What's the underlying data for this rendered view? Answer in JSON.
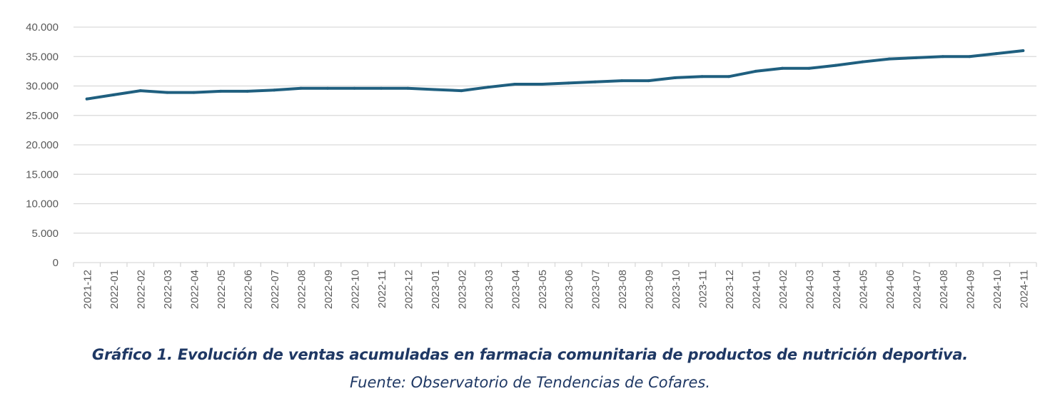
{
  "chart_data": {
    "type": "line",
    "title": "",
    "xlabel": "",
    "ylabel": "",
    "ylim": [
      0,
      40000
    ],
    "y_ticks": [
      "0",
      "5.000",
      "10.000",
      "15.000",
      "20.000",
      "25.000",
      "30.000",
      "35.000",
      "40.000"
    ],
    "y_tick_values": [
      0,
      5000,
      10000,
      15000,
      20000,
      25000,
      30000,
      35000,
      40000
    ],
    "grid": "horizontal",
    "line_color": "#1f5f7f",
    "grid_color": "#d9d9d9",
    "categories": [
      "2021-12",
      "2022-01",
      "2022-02",
      "2022-03",
      "2022-04",
      "2022-05",
      "2022-06",
      "2022-07",
      "2022-08",
      "2022-09",
      "2022-10",
      "2022-11",
      "2022-12",
      "2023-01",
      "2023-02",
      "2023-03",
      "2023-04",
      "2023-05",
      "2023-06",
      "2023-07",
      "2023-08",
      "2023-09",
      "2023-10",
      "2023-11",
      "2023-12",
      "2024-01",
      "2024-02",
      "2024-03",
      "2024-04",
      "2024-05",
      "2024-06",
      "2024-07",
      "2024-08",
      "2024-09",
      "2024-10",
      "2024-11"
    ],
    "series": [
      {
        "values": [
          27800,
          28500,
          29200,
          28900,
          28900,
          29100,
          29100,
          29300,
          29600,
          29600,
          29600,
          29600,
          29600,
          29400,
          29200,
          29800,
          30300,
          30300,
          30500,
          30700,
          30900,
          30900,
          31400,
          31600,
          31600,
          32500,
          33000,
          33000,
          33500,
          34100,
          34600,
          34800,
          35000,
          35000,
          35500,
          36000
        ]
      }
    ]
  },
  "caption": {
    "title": "Gráfico 1. Evolución de ventas acumuladas en farmacia comunitaria de productos de nutrición deportiva.",
    "source": "Fuente: Observatorio de Tendencias de Cofares."
  }
}
